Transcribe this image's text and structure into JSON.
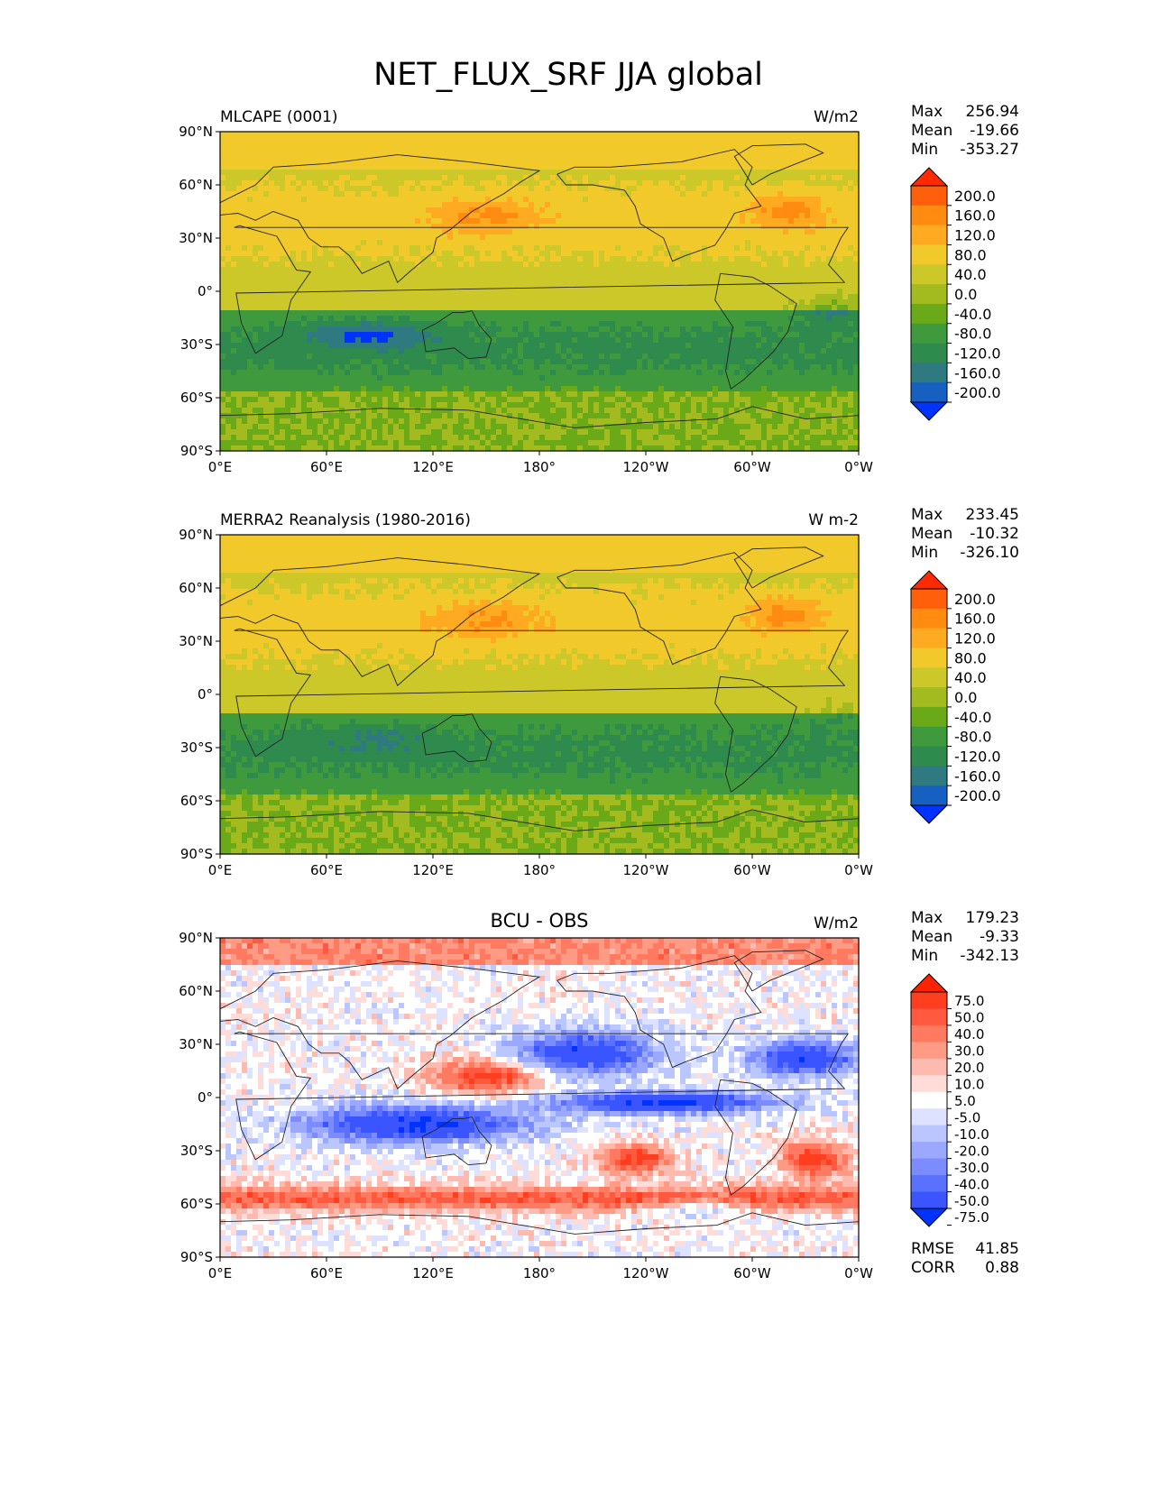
{
  "figure": {
    "title": "NET_FLUX_SRF JJA global"
  },
  "panels": [
    {
      "id": "test",
      "left_title": "MLCAPE (0001)",
      "center_title": "",
      "units": "W/m2",
      "stats": {
        "max": "256.94",
        "mean": "-19.66",
        "min": "-353.27"
      },
      "colormap": "full"
    },
    {
      "id": "reference",
      "left_title": "MERRA2 Reanalysis (1980-2016)",
      "center_title": "",
      "units": "W m-2",
      "stats": {
        "max": "233.45",
        "mean": "-10.32",
        "min": "-326.10"
      },
      "colormap": "full"
    },
    {
      "id": "difference",
      "left_title": "",
      "center_title": "BCU - OBS",
      "units": "W/m2",
      "stats": {
        "max": "179.23",
        "mean": "-9.33",
        "min": "-342.13"
      },
      "extra_stats": {
        "rmse": "41.85",
        "corr": "0.88"
      },
      "colormap": "diff"
    }
  ],
  "stat_labels": {
    "max": "Max",
    "mean": "Mean",
    "min": "Min",
    "rmse": "RMSE",
    "corr": "CORR"
  },
  "axes": {
    "x_ticks": [
      "0°E",
      "60°E",
      "120°E",
      "180°",
      "120°W",
      "60°W",
      "0°W"
    ],
    "y_ticks": [
      "90°N",
      "60°N",
      "30°N",
      "0°",
      "30°S",
      "60°S",
      "90°S"
    ]
  },
  "colorbars": {
    "full": {
      "labels": [
        "200.0",
        "160.0",
        "120.0",
        "80.0",
        "40.0",
        "0.0",
        "-40.0",
        "-80.0",
        "-120.0",
        "-160.0",
        "-200.0"
      ],
      "colors": [
        "#ff2a00",
        "#ff5f0a",
        "#ff8c10",
        "#ffaa20",
        "#f2c92a",
        "#ccc82a",
        "#a3bb1e",
        "#6aaa18",
        "#3e9a3c",
        "#2f8a4e",
        "#2e7a80",
        "#1560c0",
        "#0033ff"
      ]
    },
    "diff": {
      "labels": [
        "75.0",
        "50.0",
        "40.0",
        "30.0",
        "20.0",
        "10.0",
        "5.0",
        "-5.0",
        "-10.0",
        "-20.0",
        "-30.0",
        "-40.0",
        "-50.0",
        "-75.0"
      ],
      "colors": [
        "#ff2200",
        "#ff3e20",
        "#ff5a40",
        "#ff7a60",
        "#ff9a85",
        "#ffbab0",
        "#ffdcd8",
        "#ffffff",
        "#dce2ff",
        "#bac6ff",
        "#9aa9ff",
        "#7a8cff",
        "#5a70ff",
        "#3a55ff",
        "#0033ff"
      ]
    }
  },
  "chart_data": [
    {
      "type": "heatmap",
      "title": "MLCAPE (0001)",
      "units": "W/m2",
      "field": "NET_FLUX_SRF JJA global",
      "x_range": [
        "0°E",
        "0°W"
      ],
      "y_range": [
        "90°S",
        "90°N"
      ],
      "levels": [
        -200,
        -160,
        -120,
        -80,
        -40,
        0,
        40,
        80,
        120,
        160,
        200
      ],
      "max": 256.94,
      "mean": -19.66,
      "min": -353.27
    },
    {
      "type": "heatmap",
      "title": "MERRA2 Reanalysis (1980-2016)",
      "units": "W m-2",
      "field": "NET_FLUX_SRF JJA global",
      "x_range": [
        "0°E",
        "0°W"
      ],
      "y_range": [
        "90°S",
        "90°N"
      ],
      "levels": [
        -200,
        -160,
        -120,
        -80,
        -40,
        0,
        40,
        80,
        120,
        160,
        200
      ],
      "max": 233.45,
      "mean": -10.32,
      "min": -326.1
    },
    {
      "type": "heatmap",
      "title": "BCU - OBS",
      "units": "W/m2",
      "field": "NET_FLUX_SRF JJA global",
      "x_range": [
        "0°E",
        "0°W"
      ],
      "y_range": [
        "90°S",
        "90°N"
      ],
      "levels": [
        -75,
        -50,
        -40,
        -30,
        -20,
        -10,
        -5,
        5,
        10,
        20,
        30,
        40,
        50,
        75
      ],
      "max": 179.23,
      "mean": -9.33,
      "min": -342.13,
      "rmse": 41.85,
      "corr": 0.88
    }
  ]
}
